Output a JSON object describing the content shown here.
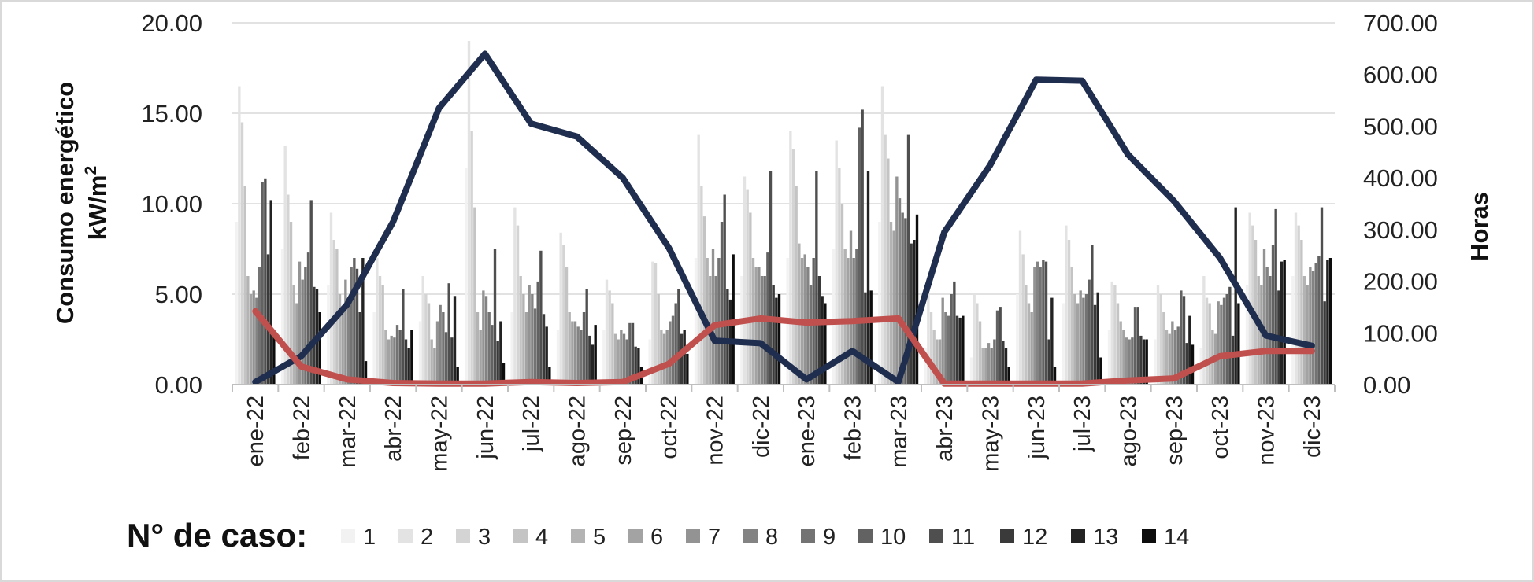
{
  "chart_data": {
    "type": "bar",
    "categories": [
      "ene-22",
      "feb-22",
      "mar-22",
      "abr-22",
      "may-22",
      "jun-22",
      "jul-22",
      "ago-22",
      "sep-22",
      "oct-22",
      "nov-22",
      "dic-22",
      "ene-23",
      "feb-23",
      "mar-23",
      "abr-23",
      "may-23",
      "jun-23",
      "jul-23",
      "ago-23",
      "sep-23",
      "oct-23",
      "nov-23",
      "dic-23"
    ],
    "y_left": {
      "label_line1": "Consumo energético",
      "label_line2": "kW/m",
      "label_sup": "2",
      "ylim": [
        0,
        20
      ],
      "ticks": [
        "0.00",
        "5.00",
        "10.00",
        "15.00",
        "20.00"
      ]
    },
    "y_right": {
      "label": "Horas",
      "ylim": [
        0,
        700
      ],
      "ticks": [
        "0.00",
        "100.00",
        "200.00",
        "300.00",
        "400.00",
        "500.00",
        "600.00",
        "700.00"
      ]
    },
    "grid": true,
    "legend": {
      "title": "N° de caso:",
      "position": "bottom"
    },
    "bar_series": [
      {
        "name": "1",
        "color": "#f2f2f2",
        "values": [
          9.0,
          7.5,
          5.5,
          4.0,
          3.5,
          12.0,
          4.0,
          3.0,
          3.0,
          2.5,
          7.0,
          6.0,
          7.0,
          7.5,
          9.0,
          2.0,
          1.5,
          5.0,
          4.5,
          3.0,
          2.5,
          2.0,
          5.5,
          6.0
        ]
      },
      {
        "name": "2",
        "color": "#e3e3e3",
        "values": [
          16.5,
          13.2,
          9.5,
          7.0,
          6.0,
          19.0,
          9.8,
          8.4,
          5.8,
          6.8,
          13.8,
          11.5,
          14.0,
          13.5,
          16.5,
          5.0,
          5.0,
          8.5,
          8.8,
          5.7,
          5.5,
          6.0,
          9.5,
          9.5
        ]
      },
      {
        "name": "3",
        "color": "#d4d4d4",
        "values": [
          14.5,
          10.5,
          8.0,
          6.0,
          5.0,
          14.0,
          8.8,
          7.7,
          5.2,
          6.7,
          11.0,
          10.8,
          13.0,
          12.0,
          13.8,
          4.0,
          4.5,
          7.2,
          8.0,
          5.5,
          5.0,
          4.8,
          8.8,
          8.8
        ]
      },
      {
        "name": "4",
        "color": "#c4c4c4",
        "values": [
          11.0,
          9.0,
          7.5,
          5.5,
          4.5,
          9.8,
          6.0,
          6.5,
          4.5,
          5.0,
          9.3,
          9.5,
          11.0,
          10.0,
          12.5,
          3.0,
          3.5,
          5.5,
          6.5,
          4.5,
          4.0,
          4.5,
          8.0,
          8.0
        ]
      },
      {
        "name": "5",
        "color": "#b3b3b3",
        "values": [
          6.0,
          5.5,
          5.0,
          3.0,
          2.5,
          4.0,
          5.0,
          4.0,
          2.8,
          3.0,
          7.0,
          7.0,
          7.8,
          7.5,
          9.0,
          2.5,
          2.0,
          4.5,
          5.0,
          3.5,
          3.0,
          3.0,
          6.0,
          6.0
        ]
      },
      {
        "name": "6",
        "color": "#a3a3a3",
        "values": [
          5.0,
          4.5,
          4.0,
          2.5,
          2.0,
          3.0,
          4.0,
          3.5,
          2.5,
          2.8,
          6.0,
          6.5,
          7.0,
          7.0,
          8.5,
          2.5,
          2.0,
          4.0,
          4.5,
          3.0,
          2.8,
          2.8,
          5.5,
          5.5
        ]
      },
      {
        "name": "7",
        "color": "#939393",
        "values": [
          5.2,
          6.8,
          5.8,
          2.7,
          3.5,
          5.2,
          5.5,
          3.5,
          3.0,
          3.0,
          7.5,
          6.5,
          7.2,
          8.5,
          11.5,
          4.8,
          2.3,
          6.5,
          5.2,
          2.6,
          3.5,
          4.6,
          7.5,
          6.5
        ]
      },
      {
        "name": "8",
        "color": "#838383",
        "values": [
          4.8,
          5.8,
          4.5,
          2.6,
          4.4,
          4.9,
          5.0,
          3.2,
          2.8,
          3.5,
          6.0,
          6.0,
          6.5,
          7.0,
          10.3,
          4.0,
          2.0,
          6.8,
          4.8,
          2.5,
          3.0,
          4.4,
          6.5,
          6.3
        ]
      },
      {
        "name": "9",
        "color": "#737373",
        "values": [
          6.5,
          6.5,
          6.5,
          3.3,
          4.0,
          4.0,
          4.2,
          3.0,
          2.5,
          3.8,
          7.0,
          6.0,
          5.5,
          7.5,
          9.5,
          3.8,
          2.5,
          6.5,
          5.0,
          2.6,
          3.2,
          4.8,
          6.0,
          6.7
        ]
      },
      {
        "name": "10",
        "color": "#626262",
        "values": [
          11.2,
          7.3,
          7.0,
          3.0,
          2.9,
          3.3,
          5.7,
          4.0,
          3.4,
          4.5,
          9.0,
          7.3,
          7.0,
          14.2,
          9.2,
          5.0,
          4.1,
          6.9,
          5.8,
          4.3,
          5.2,
          5.0,
          7.7,
          7.1
        ]
      },
      {
        "name": "11",
        "color": "#4f4f4f",
        "values": [
          11.4,
          10.2,
          6.4,
          5.3,
          5.6,
          7.5,
          7.4,
          5.3,
          3.4,
          5.3,
          10.5,
          11.8,
          11.8,
          15.2,
          13.8,
          5.7,
          4.3,
          6.8,
          7.7,
          4.3,
          4.9,
          5.4,
          9.7,
          9.8
        ]
      },
      {
        "name": "12",
        "color": "#3a3a3a",
        "values": [
          7.2,
          5.4,
          4.0,
          2.5,
          2.6,
          2.4,
          3.9,
          2.7,
          2.1,
          2.8,
          5.3,
          5.5,
          6.0,
          5.1,
          7.8,
          3.8,
          2.4,
          2.5,
          4.4,
          2.7,
          2.3,
          2.7,
          5.2,
          4.6
        ]
      },
      {
        "name": "13",
        "color": "#232323",
        "values": [
          10.2,
          5.3,
          7.0,
          2.0,
          4.9,
          3.5,
          3.2,
          2.2,
          2.0,
          3.0,
          4.7,
          4.8,
          4.9,
          11.8,
          8.0,
          3.7,
          2.0,
          4.8,
          5.1,
          2.5,
          3.8,
          9.8,
          6.8,
          6.9
        ]
      },
      {
        "name": "14",
        "color": "#0d0d0d",
        "values": [
          2.7,
          4.0,
          1.3,
          3.0,
          1.0,
          1.2,
          1.0,
          3.3,
          1.0,
          1.7,
          7.2,
          5.0,
          4.5,
          5.2,
          9.4,
          3.8,
          1.0,
          1.0,
          1.5,
          2.5,
          2.2,
          4.5,
          6.9,
          7.0
        ]
      }
    ],
    "line_series": [
      {
        "color": "#1f2d4e",
        "axis": "right",
        "values": [
          5,
          55,
          155,
          315,
          535,
          640,
          505,
          480,
          400,
          265,
          85,
          80,
          10,
          65,
          5,
          295,
          425,
          590,
          588,
          445,
          355,
          245,
          95,
          75
        ]
      },
      {
        "color": "#c0504d",
        "axis": "right",
        "values": [
          142,
          35,
          10,
          3,
          2,
          2,
          5,
          3,
          5,
          40,
          115,
          128,
          120,
          123,
          128,
          2,
          2,
          2,
          2,
          8,
          12,
          55,
          65,
          65
        ]
      }
    ]
  }
}
